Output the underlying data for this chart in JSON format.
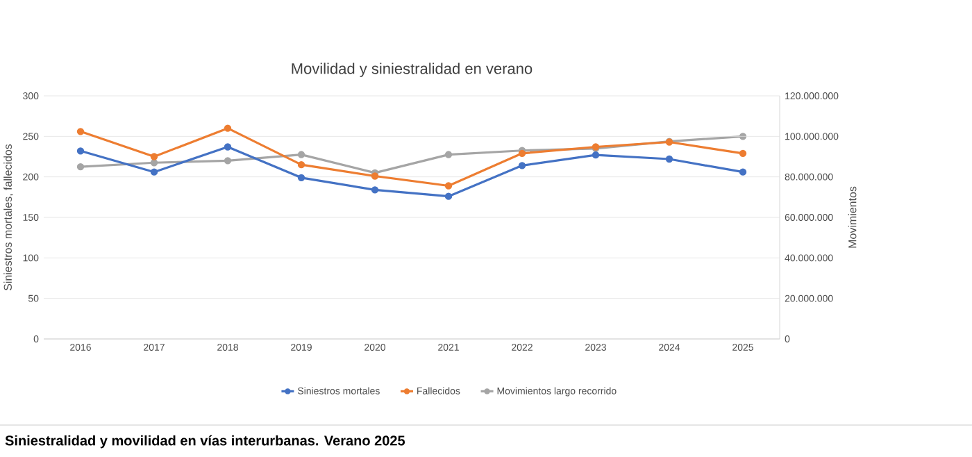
{
  "chart_data": {
    "type": "line",
    "title": "Movilidad y siniestralidad en verano",
    "ylabel": "Siniestros mortales, fallecidos",
    "y2label": "Movimientos",
    "categories": [
      "2016",
      "2017",
      "2018",
      "2019",
      "2020",
      "2021",
      "2022",
      "2023",
      "2024",
      "2025"
    ],
    "series": [
      {
        "name": "Siniestros mortales",
        "color": "#4472c4",
        "values": [
          232,
          206,
          237,
          199,
          184,
          176,
          214,
          227,
          222,
          206
        ]
      },
      {
        "name": "Fallecidos",
        "color": "#ed7d31",
        "values": [
          256,
          225,
          260,
          215,
          201,
          189,
          229,
          237,
          243,
          229
        ]
      },
      {
        "name": "Movimientos largo recorrido",
        "color": "#a5a5a5",
        "axis": "y2",
        "values": [
          85000000,
          87000000,
          88000000,
          91000000,
          82000000,
          91000000,
          93000000,
          94000000,
          97500000,
          100000000
        ]
      }
    ],
    "ylim": [
      0,
      300
    ],
    "yticks": [
      0,
      50,
      100,
      150,
      200,
      250,
      300
    ],
    "y2lim": [
      0,
      120000000
    ],
    "y2ticks": [
      0,
      {
        "value": 20000000,
        "label": "20.000.000"
      },
      {
        "value": 40000000,
        "label": "40.000.000"
      },
      {
        "value": 60000000,
        "label": "60.000.000"
      },
      {
        "value": 80000000,
        "label": "80.000.000"
      },
      {
        "value": 100000000,
        "label": "100.000.000"
      },
      {
        "value": 120000000,
        "label": "120.000.000"
      }
    ],
    "grid": "y",
    "legend": "bottom",
    "marker": "circle",
    "line_style": "solid",
    "annotations": [
      "Siniestralidad y movilidad en vías interurbanas. Verano 2025"
    ]
  }
}
